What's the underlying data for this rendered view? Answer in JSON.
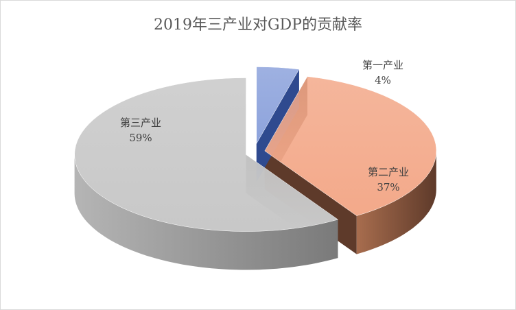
{
  "chart_data": {
    "type": "pie",
    "title": "2019年三产业对GDP的贡献率",
    "categories": [
      "第一产业",
      "第二产业",
      "第三产业"
    ],
    "values": [
      4,
      37,
      59
    ],
    "value_labels": [
      "4%",
      "37%",
      "59%"
    ],
    "colors": {
      "top": [
        "#8da3dc",
        "#f3a98a",
        "#c8c8c8"
      ],
      "side_dark": [
        "#2f4a8f",
        "#5e3a2a",
        "#7a7a7a"
      ],
      "side_light": [
        "#6c86cc",
        "#a86d4e",
        "#b5b5b5"
      ]
    },
    "exploded": true,
    "legend": "none"
  }
}
